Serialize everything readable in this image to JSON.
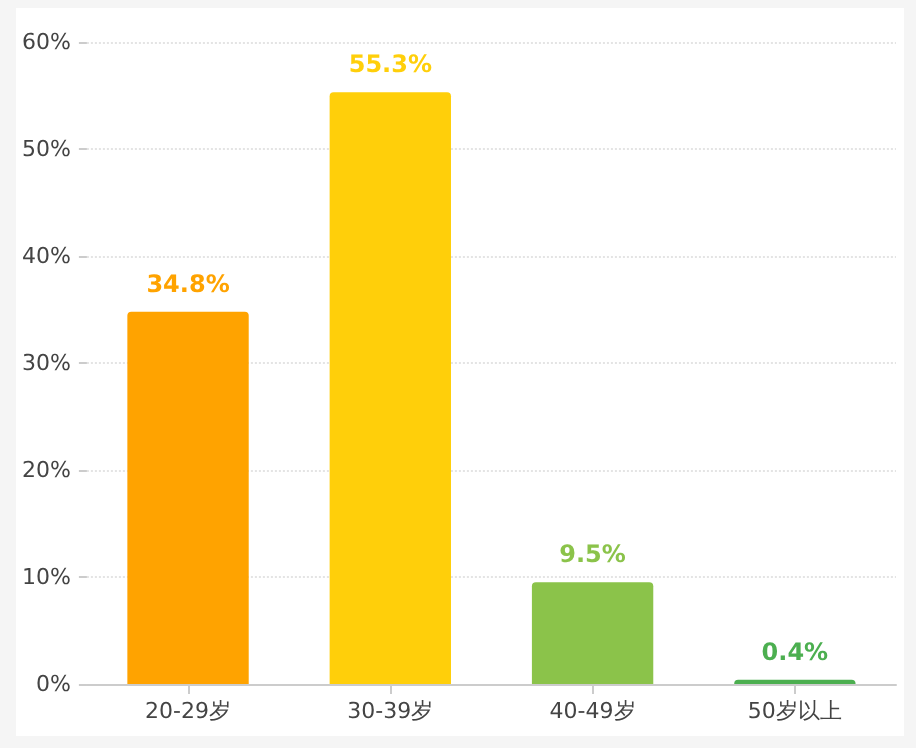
{
  "chart_data": {
    "type": "bar",
    "categories": [
      "20-29岁",
      "30-39岁",
      "40-49岁",
      "50岁以上"
    ],
    "values": [
      34.8,
      55.3,
      9.5,
      0.4
    ],
    "colors": [
      "#ffa300",
      "#ffcf0a",
      "#8bc34a",
      "#4caf50"
    ],
    "value_labels": [
      "34.8%",
      "55.3%",
      "9.5%",
      "0.4%"
    ],
    "ylim": [
      0,
      60
    ],
    "yticks": [
      {
        "value": 0,
        "label": "0%"
      },
      {
        "value": 10,
        "label": "10%"
      },
      {
        "value": 20,
        "label": "20%"
      },
      {
        "value": 30,
        "label": "30%"
      },
      {
        "value": 40,
        "label": "40%"
      },
      {
        "value": 50,
        "label": "50%"
      },
      {
        "value": 60,
        "label": "60%"
      }
    ],
    "grid": "y"
  }
}
